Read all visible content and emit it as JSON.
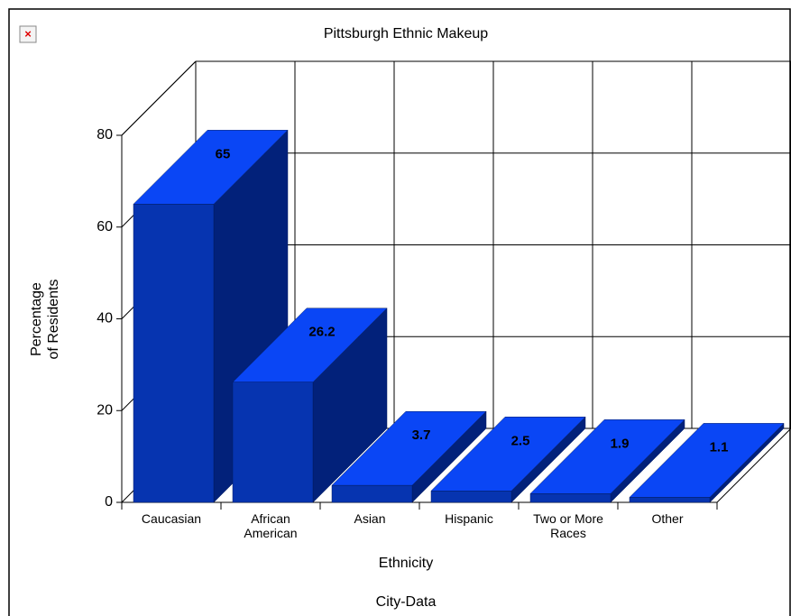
{
  "chart_data": {
    "type": "bar3d",
    "title": "Pittsburgh Ethnic Makeup",
    "categories": [
      "Caucasian",
      "African American",
      "Asian",
      "Hispanic",
      "Two or More Races",
      "Other"
    ],
    "values": [
      65,
      26.2,
      3.7,
      2.5,
      1.9,
      1.1
    ],
    "x_label": "Ethnicity",
    "y_label": "Percentage of Residents",
    "source": "City-Data",
    "ylim": [
      0,
      80
    ],
    "yticks": [
      0,
      20,
      40,
      60,
      80
    ],
    "grid": true,
    "colors": {
      "front": "#0634b0",
      "top": "#0a46f5",
      "side": "#02217a"
    }
  }
}
